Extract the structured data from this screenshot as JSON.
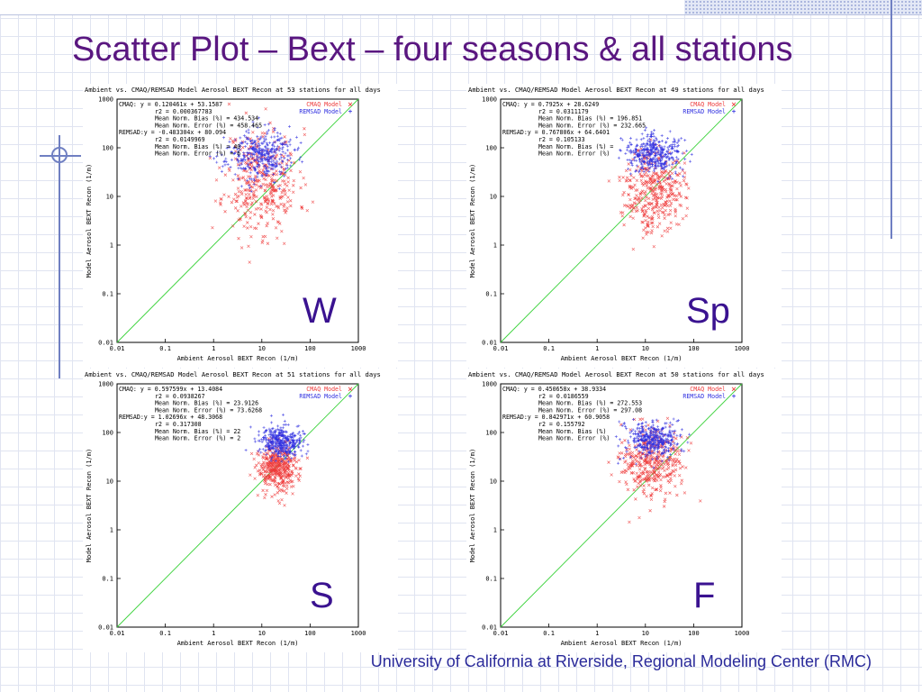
{
  "slide": {
    "title": "Scatter Plot – Bext – four seasons & all stations",
    "footer": "University of California at Riverside, Regional Modeling Center (RMC)"
  },
  "colors": {
    "cmaq": "#ee3a3a",
    "remsad": "#3030e0",
    "one_to_one": "#3ad23a",
    "title": "#5a1780",
    "footer": "#2a2a9a"
  },
  "chart_data": [
    {
      "type": "scatter",
      "season": "W",
      "title": "Ambient vs. CMAQ/REMSAD Model Aerosol BEXT Recon at 53 stations for all days",
      "xlabel": "Ambient Aerosol BEXT Recon (1/m)",
      "ylabel": "Model Aerosol BEXT Recon (1/m)",
      "scale": "log",
      "xlim": [
        0.01,
        1000
      ],
      "ylim": [
        0.01,
        1000
      ],
      "ticks": [
        "0.01",
        "0.1",
        "1",
        "10",
        "100",
        "1000"
      ],
      "legend_position": "top-right",
      "legend": [
        {
          "name": "CMAQ Model",
          "color": "#ee3a3a"
        },
        {
          "name": "REMSAD Model",
          "color": "#3030e0"
        }
      ],
      "stats": [
        "CMAQ:   y = 0.120461x + 53.1587",
        "r2 = 0.000367783",
        "Mean Norm. Bias (%) = 434.534",
        "Mean Norm. Error (%) = 458.465",
        "REMSAD:y = -0.483304x + 80.094",
        "r2 = 0.0149969",
        "Mean Norm. Bias (%) = 40",
        "Mean Norm. Error (%) = 6"
      ],
      "series": [
        {
          "name": "CMAQ Model",
          "marker": "x",
          "center": [
            10,
            20
          ],
          "spread": [
            0.38,
            0.55
          ],
          "n": 380,
          "seed": 11
        },
        {
          "name": "REMSAD Model",
          "marker": "+",
          "center": [
            9,
            70
          ],
          "spread": [
            0.35,
            0.25
          ],
          "n": 380,
          "seed": 23
        }
      ],
      "fit_lines": [
        {
          "series": "CMAQ Model",
          "slope": 0.120461,
          "intercept": 53.1587
        },
        {
          "series": "REMSAD Model",
          "slope": -0.483304,
          "intercept": 80.094
        }
      ]
    },
    {
      "type": "scatter",
      "season": "Sp",
      "title": "Ambient vs. CMAQ/REMSAD Model Aerosol BEXT Recon at 49 stations for all days",
      "xlabel": "Ambient Aerosol BEXT Recon (1/m)",
      "ylabel": "Model Aerosol BEXT Recon (1/m)",
      "scale": "log",
      "xlim": [
        0.01,
        1000
      ],
      "ylim": [
        0.01,
        1000
      ],
      "ticks": [
        "0.01",
        "0.1",
        "1",
        "10",
        "100",
        "1000"
      ],
      "legend_position": "top-right",
      "legend": [
        {
          "name": "CMAQ Model",
          "color": "#ee3a3a"
        },
        {
          "name": "REMSAD Model",
          "color": "#3030e0"
        }
      ],
      "stats": [
        "CMAQ:   y = 0.7925x + 28.6249",
        "r2 = 0.0311179",
        "Mean Norm. Bias (%) = 196.851",
        "Mean Norm. Error (%) = 232.665",
        "REMSAD:y = 0.767806x + 64.6401",
        "r2 = 0.105133",
        "Mean Norm. Bias (%) =",
        "Mean Norm. Error (%)"
      ],
      "series": [
        {
          "name": "CMAQ Model",
          "marker": "x",
          "center": [
            15,
            14
          ],
          "spread": [
            0.3,
            0.42
          ],
          "n": 380,
          "seed": 37
        },
        {
          "name": "REMSAD Model",
          "marker": "+",
          "center": [
            15,
            75
          ],
          "spread": [
            0.3,
            0.2
          ],
          "n": 380,
          "seed": 41
        }
      ],
      "fit_lines": [
        {
          "series": "CMAQ Model",
          "slope": 0.7925,
          "intercept": 28.6249
        },
        {
          "series": "REMSAD Model",
          "slope": 0.767806,
          "intercept": 64.6401
        }
      ]
    },
    {
      "type": "scatter",
      "season": "S",
      "title": "Ambient vs. CMAQ/REMSAD Model Aerosol BEXT Recon at 51 stations for all days",
      "xlabel": "Ambient Aerosol BEXT Recon (1/m)",
      "ylabel": "Model Aerosol BEXT Recon (1/m)",
      "scale": "log",
      "xlim": [
        0.01,
        1000
      ],
      "ylim": [
        0.01,
        1000
      ],
      "ticks": [
        "0.01",
        "0.1",
        "1",
        "10",
        "100",
        "1000"
      ],
      "legend_position": "top-right",
      "legend": [
        {
          "name": "CMAQ Model",
          "color": "#ee3a3a"
        },
        {
          "name": "REMSAD Model",
          "color": "#3030e0"
        }
      ],
      "stats": [
        "CMAQ:   y = 0.597599x + 13.4084",
        "r2 = 0.0938267",
        "Mean Norm. Bias (%) = 23.9126",
        "Mean Norm. Error (%) = 73.6268",
        "REMSAD:y = 1.02696x + 48.3068",
        "r2 = 0.317308",
        "Mean Norm. Bias (%) = 22",
        "Mean Norm. Error (%) = 2"
      ],
      "series": [
        {
          "name": "CMAQ Model",
          "marker": "x",
          "center": [
            22,
            18
          ],
          "spread": [
            0.22,
            0.25
          ],
          "n": 380,
          "seed": 53
        },
        {
          "name": "REMSAD Model",
          "marker": "+",
          "center": [
            25,
            62
          ],
          "spread": [
            0.22,
            0.15
          ],
          "n": 380,
          "seed": 59
        }
      ],
      "fit_lines": [
        {
          "series": "CMAQ Model",
          "slope": 0.597599,
          "intercept": 13.4084
        },
        {
          "series": "REMSAD Model",
          "slope": 1.02696,
          "intercept": 48.3068
        }
      ]
    },
    {
      "type": "scatter",
      "season": "F",
      "title": "Ambient vs. CMAQ/REMSAD Model Aerosol BEXT Recon at 50 stations for all days",
      "xlabel": "Ambient Aerosol BEXT Recon (1/m)",
      "ylabel": "Model Aerosol BEXT Recon (1/m)",
      "scale": "log",
      "xlim": [
        0.01,
        1000
      ],
      "ylim": [
        0.01,
        1000
      ],
      "ticks": [
        "0.01",
        "0.1",
        "1",
        "10",
        "100",
        "1000"
      ],
      "legend_position": "top-right",
      "legend": [
        {
          "name": "CMAQ Model",
          "color": "#ee3a3a"
        },
        {
          "name": "REMSAD Model",
          "color": "#3030e0"
        }
      ],
      "stats": [
        "CMAQ:   y = 0.450658x + 38.9334",
        "r2 = 0.0186559",
        "Mean Norm. Bias (%) = 272.553",
        "Mean Norm. Error (%) = 297.08",
        "REMSAD:y = 0.842971x + 60.9058",
        "r2 = 0.155792",
        "Mean Norm. Bias (%)",
        "Mean Norm. Error (%)"
      ],
      "series": [
        {
          "name": "CMAQ Model",
          "marker": "x",
          "center": [
            13,
            22
          ],
          "spread": [
            0.3,
            0.35
          ],
          "n": 380,
          "seed": 67
        },
        {
          "name": "REMSAD Model",
          "marker": "+",
          "center": [
            14,
            70
          ],
          "spread": [
            0.28,
            0.18
          ],
          "n": 380,
          "seed": 71
        }
      ],
      "fit_lines": [
        {
          "series": "CMAQ Model",
          "slope": 0.450658,
          "intercept": 38.9334
        },
        {
          "series": "REMSAD Model",
          "slope": 0.842971,
          "intercept": 60.9058
        }
      ]
    }
  ]
}
